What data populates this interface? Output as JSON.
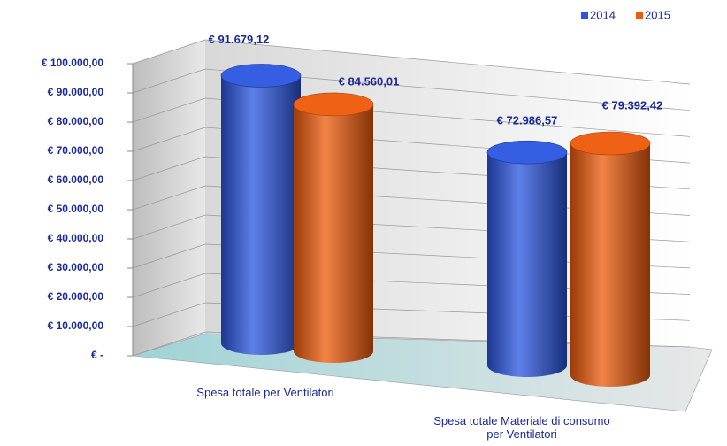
{
  "chart_data": {
    "type": "bar3d",
    "categories": [
      "Spesa totale per Ventilatori",
      "Spesa totale Materiale di consumo per Ventilatori"
    ],
    "series": [
      {
        "name": "2014",
        "color": "#2a55e0",
        "values": [
          91679.12,
          72986.57
        ],
        "value_labels": [
          "€ 91.679,12",
          "€ 72.986,57"
        ]
      },
      {
        "name": "2015",
        "color": "#ee5a0a",
        "values": [
          84560.01,
          79392.42
        ],
        "value_labels": [
          "€ 84.560,01",
          "€ 79.392,42"
        ]
      }
    ],
    "ylim": [
      0,
      100000
    ],
    "yticks": [
      {
        "value": 0,
        "label": "€ -"
      },
      {
        "value": 10000,
        "label": "€ 10.000,00"
      },
      {
        "value": 20000,
        "label": "€ 20.000,00"
      },
      {
        "value": 30000,
        "label": "€ 30.000,00"
      },
      {
        "value": 40000,
        "label": "€ 40.000,00"
      },
      {
        "value": 50000,
        "label": "€ 50.000,00"
      },
      {
        "value": 60000,
        "label": "€ 60.000,00"
      },
      {
        "value": 70000,
        "label": "€ 70.000,00"
      },
      {
        "value": 80000,
        "label": "€ 80.000,00"
      },
      {
        "value": 90000,
        "label": "€ 90.000,00"
      },
      {
        "value": 100000,
        "label": "€ 100.000,00"
      }
    ],
    "grid": true,
    "legend": "top-right"
  }
}
